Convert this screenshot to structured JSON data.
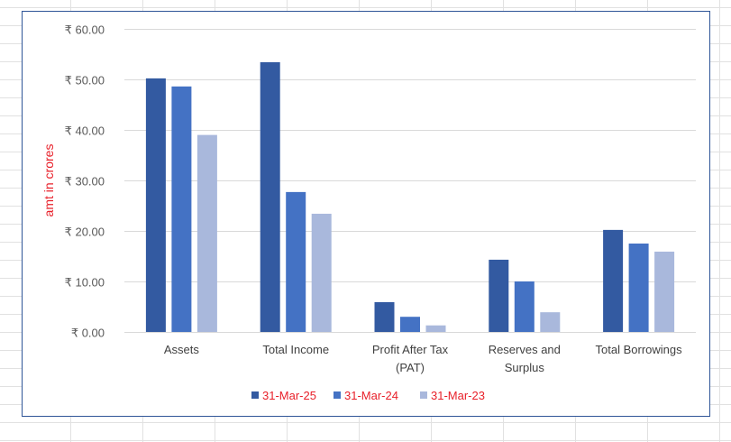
{
  "colors": {
    "series": [
      "#335aa1",
      "#4472c4",
      "#a9b8dc"
    ],
    "grid": "#d9d9d9",
    "sheet_grid": "#e1e1e1",
    "axis_title": "#e8202a",
    "legend_text": "#e8202a",
    "frame": "#2f5597"
  },
  "chart_data": {
    "type": "bar",
    "ylabel": "amt in crores",
    "ylim": [
      0,
      60
    ],
    "yticks": [
      "₹ 0.00",
      "₹ 10.00",
      "₹ 20.00",
      "₹ 30.00",
      "₹ 40.00",
      "₹ 50.00",
      "₹ 60.00"
    ],
    "grid": true,
    "legend_position": "bottom",
    "categories": [
      [
        "Assets"
      ],
      [
        "Total Income"
      ],
      [
        "Profit After Tax",
        "(PAT)"
      ],
      [
        "Reserves and",
        "Surplus"
      ],
      [
        "Total Borrowings"
      ]
    ],
    "series": [
      {
        "name": "31-Mar-25",
        "values": [
          50.2,
          53.4,
          5.9,
          14.3,
          20.2
        ]
      },
      {
        "name": "31-Mar-24",
        "values": [
          48.6,
          27.7,
          3.0,
          10.0,
          17.5
        ]
      },
      {
        "name": "31-Mar-23",
        "values": [
          39.0,
          23.4,
          1.3,
          3.9,
          15.9
        ]
      }
    ]
  }
}
